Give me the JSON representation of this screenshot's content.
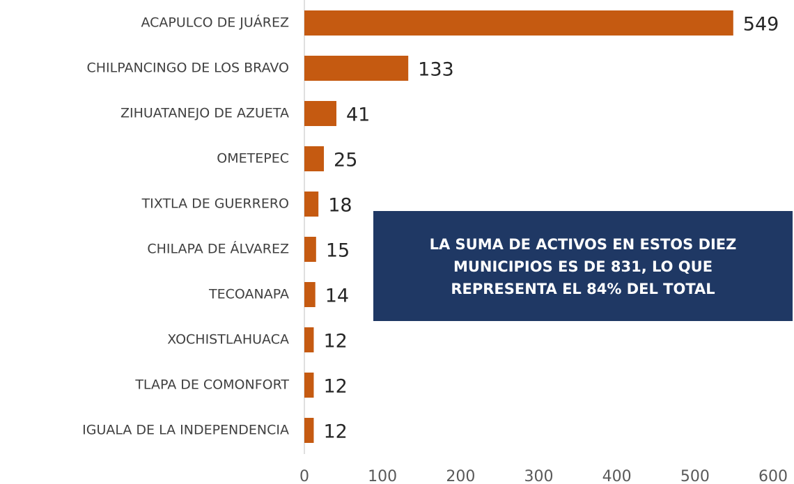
{
  "chart_data": {
    "type": "hbar",
    "categories": [
      "ACAPULCO DE JUÁREZ",
      "CHILPANCINGO DE LOS BRAVO",
      "ZIHUATANEJO DE AZUETA",
      "OMETEPEC",
      "TIXTLA DE GUERRERO",
      "CHILAPA DE ÁLVAREZ",
      "TECOANAPA",
      "XOCHISTLAHUACA",
      "TLAPA DE COMONFORT",
      "IGUALA DE LA INDEPENDENCIA"
    ],
    "values": [
      549,
      133,
      41,
      25,
      18,
      15,
      14,
      12,
      12,
      12
    ],
    "color": "#c55a11",
    "xlim": [
      0,
      600
    ],
    "xticks": [
      0,
      100,
      200,
      300,
      400,
      500,
      600
    ],
    "annotation": [
      "LA SUMA DE ACTIVOS EN ESTOS DIEZ",
      "MUNICIPIOS ES DE 831, LO QUE",
      "REPRESENTA EL 84% DEL TOTAL"
    ]
  }
}
